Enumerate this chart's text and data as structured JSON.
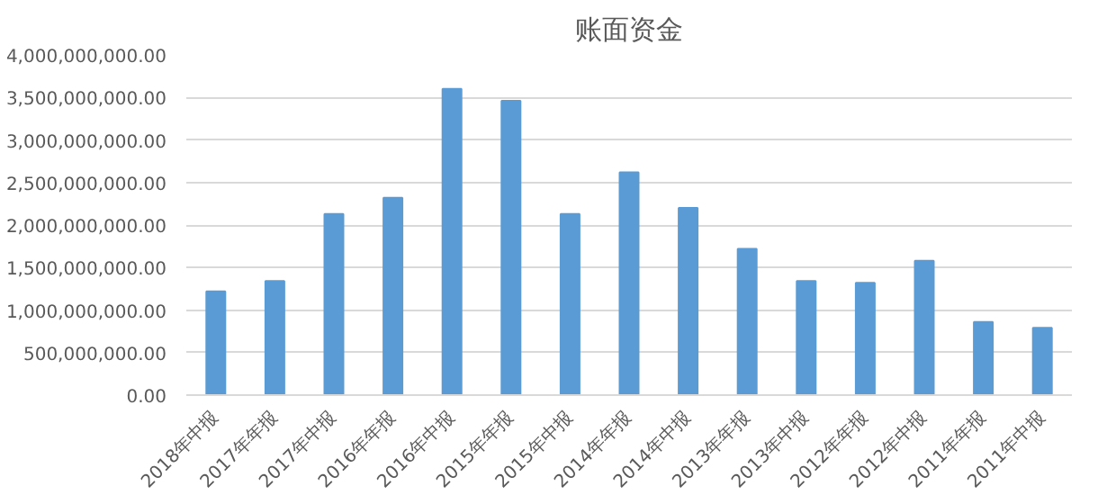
{
  "chart_data": {
    "type": "bar",
    "title": "账面资金",
    "categories": [
      "2018年中报",
      "2017年年报",
      "2017年中报",
      "2016年年报",
      "2016年中报",
      "2015年年报",
      "2015年中报",
      "2014年年报",
      "2014年中报",
      "2013年年报",
      "2013年中报",
      "2012年年报",
      "2012年中报",
      "2011年年报",
      "2011年中报"
    ],
    "values": [
      1220000000,
      1340000000,
      2130000000,
      2320000000,
      3600000000,
      3460000000,
      2130000000,
      2620000000,
      2200000000,
      1720000000,
      1340000000,
      1320000000,
      1580000000,
      860000000,
      790000000
    ],
    "color": "#5b9bd5",
    "ylim": [
      0,
      4000000000
    ],
    "yticks": [
      {
        "value": 0,
        "label": "0.00"
      },
      {
        "value": 500000000,
        "label": "500,000,000.00"
      },
      {
        "value": 1000000000,
        "label": "1,000,000,000.00"
      },
      {
        "value": 1500000000,
        "label": "1,500,000,000.00"
      },
      {
        "value": 2000000000,
        "label": "2,000,000,000.00"
      },
      {
        "value": 2500000000,
        "label": "2,500,000,000.00"
      },
      {
        "value": 3000000000,
        "label": "3,000,000,000.00"
      },
      {
        "value": 3500000000,
        "label": "3,500,000,000.00"
      },
      {
        "value": 4000000000,
        "label": "4,000,000,000.00"
      }
    ],
    "grid": "y"
  }
}
